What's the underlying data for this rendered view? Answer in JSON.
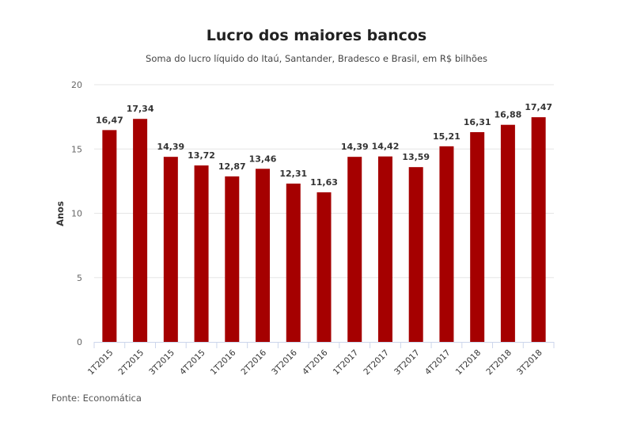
{
  "header": {
    "title": "Lucro dos maiores bancos",
    "subtitle": "Soma do lucro líquido do Itaú, Santander, Bradesco e Brasil, em R$ bilhões"
  },
  "footer": {
    "source": "Fonte: Economática"
  },
  "colors": {
    "bar": "#a50000",
    "grid": "#e6e6e6",
    "axis": "#ccd6eb",
    "text": "#333333"
  },
  "chart_data": {
    "type": "bar",
    "title": "Lucro dos maiores bancos",
    "subtitle": "Soma do lucro líquido do Itaú, Santander, Bradesco e Brasil, em R$ bilhões",
    "xlabel": "",
    "ylabel": "Anos",
    "ylim": [
      0,
      20
    ],
    "yticks": [
      0,
      5,
      10,
      15,
      20
    ],
    "grid": true,
    "legend": null,
    "categories": [
      "1T2015",
      "2T2015",
      "3T2015",
      "4T2015",
      "1T2016",
      "2T2016",
      "3T2016",
      "4T2016",
      "1T2017",
      "2T2017",
      "3T2017",
      "4T2017",
      "1T2018",
      "2T2018",
      "3T2018"
    ],
    "values": [
      16.47,
      17.34,
      14.39,
      13.72,
      12.87,
      13.46,
      12.31,
      11.63,
      14.39,
      14.42,
      13.59,
      15.21,
      16.31,
      16.88,
      17.47
    ],
    "value_labels": [
      "16,47",
      "17,34",
      "14,39",
      "13,72",
      "12,87",
      "13,46",
      "12,31",
      "11,63",
      "14,39",
      "14,42",
      "13,59",
      "15,21",
      "16,31",
      "16,88",
      "17,47"
    ],
    "source": "Fonte: Economática"
  }
}
